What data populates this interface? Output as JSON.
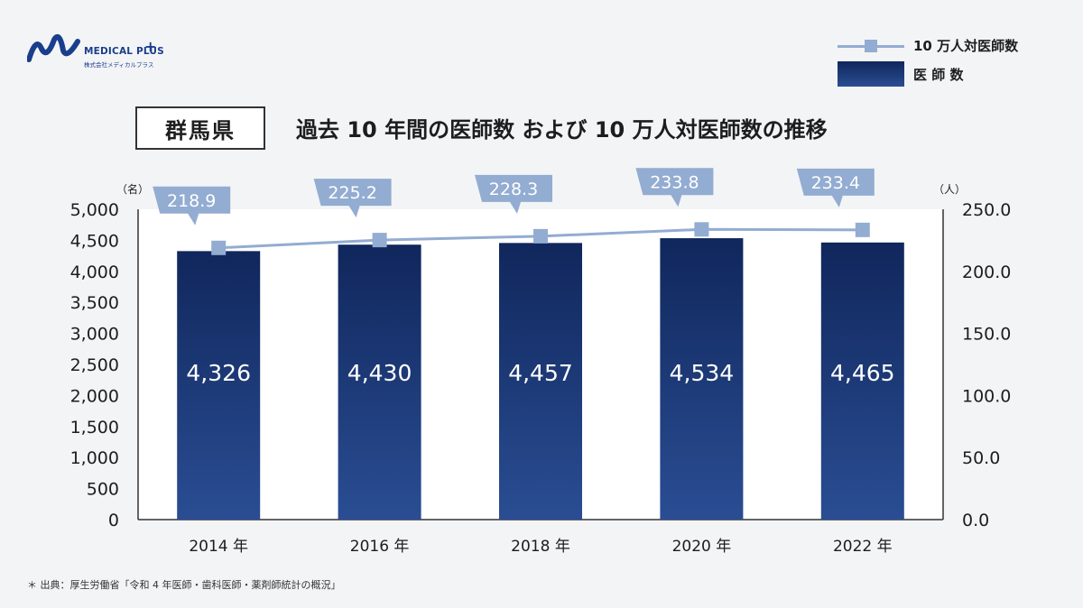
{
  "brand": {
    "name": "MEDICAL PLUS",
    "plus": "+",
    "subtitle": "株式会社メディカルプラス"
  },
  "legend": {
    "line_label": "10 万人対医師数",
    "bar_label": "医 師 数"
  },
  "prefecture": "群馬県",
  "title": "過去 10 年間の医師数 および 10 万人対医師数の推移",
  "source": "＊ 出典：厚生労働省「令和 4 年医師・歯科医師・薬剤師統計の概況」",
  "colors": {
    "bar_top": "#10275c",
    "bar_bottom": "#2a4d93",
    "line": "#93acd2",
    "callout": "#93acd2"
  },
  "chart_data": {
    "type": "bar",
    "categories": [
      "2014 年",
      "2016 年",
      "2018 年",
      "2020 年",
      "2022 年"
    ],
    "series": [
      {
        "name": "医 師 数",
        "type": "bar",
        "axis": "left",
        "values": [
          4326,
          4430,
          4457,
          4534,
          4465
        ],
        "labels": [
          "4,326",
          "4,430",
          "4,457",
          "4,534",
          "4,465"
        ]
      },
      {
        "name": "10 万人対医師数",
        "type": "line",
        "axis": "right",
        "values": [
          218.9,
          225.2,
          228.3,
          233.8,
          233.4
        ],
        "labels": [
          "218.9",
          "225.2",
          "228.3",
          "233.8",
          "233.4"
        ]
      }
    ],
    "y_left": {
      "unit": "（名）",
      "range": [
        0,
        5000
      ],
      "ticks": [
        "0",
        "500",
        "1,000",
        "1,500",
        "2,000",
        "2,500",
        "3,000",
        "3,500",
        "4,000",
        "4,500",
        "5,000"
      ]
    },
    "y_right": {
      "unit": "（人）",
      "range": [
        0,
        250
      ],
      "ticks": [
        "0.0",
        "50.0",
        "100.0",
        "150.0",
        "200.0",
        "250.0"
      ]
    },
    "grid": false,
    "legend_position": "top-right"
  }
}
